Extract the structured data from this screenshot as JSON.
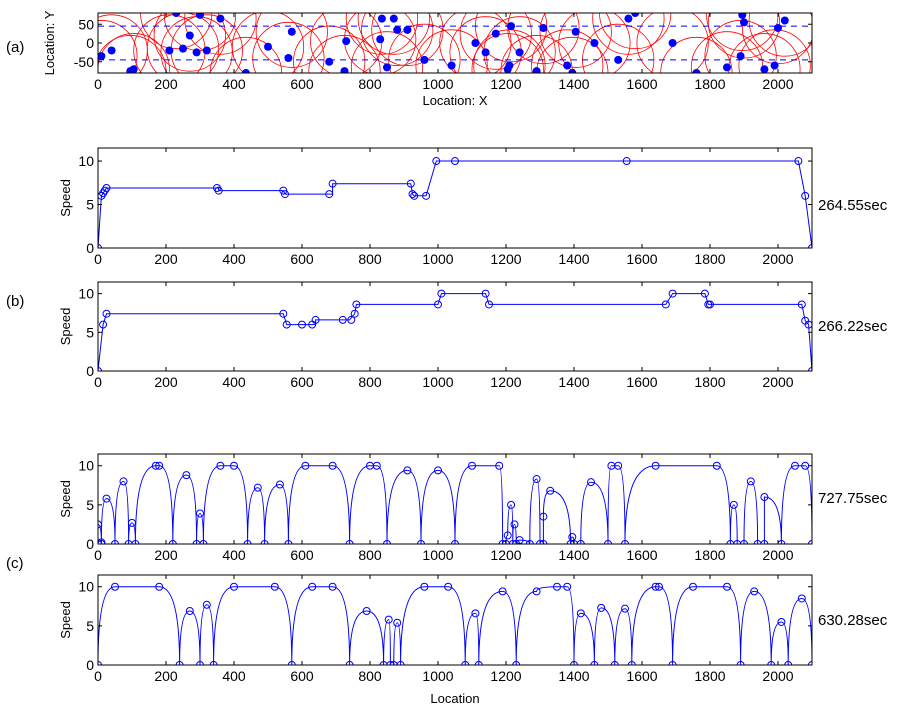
{
  "panel_labels": [
    "(a)",
    "(b)",
    "(c)"
  ],
  "colors": {
    "axes": "#000000",
    "line": "#0000ff",
    "circles": "#ff0000",
    "dots": "#0000ff"
  },
  "chart_data": [
    {
      "type": "scatter",
      "panel": "(a)",
      "xlabel": "Location: X",
      "ylabel": "Location: Y",
      "xlim": [
        0,
        2100
      ],
      "ylim": [
        -80,
        80
      ],
      "xticks": [
        0,
        200,
        400,
        600,
        800,
        1000,
        1200,
        1400,
        1600,
        1800,
        2000
      ],
      "yticks": [
        -50,
        0,
        50
      ],
      "dashed_lines_y": [
        -45,
        45
      ],
      "points": [
        [
          10,
          -35
        ],
        [
          40,
          -20
        ],
        [
          95,
          -75
        ],
        [
          105,
          -70
        ],
        [
          210,
          -20
        ],
        [
          230,
          80
        ],
        [
          250,
          -15
        ],
        [
          270,
          20
        ],
        [
          290,
          -25
        ],
        [
          300,
          75
        ],
        [
          320,
          -20
        ],
        [
          360,
          65
        ],
        [
          435,
          -80
        ],
        [
          500,
          -10
        ],
        [
          560,
          -40
        ],
        [
          570,
          30
        ],
        [
          680,
          -50
        ],
        [
          725,
          -75
        ],
        [
          730,
          5
        ],
        [
          830,
          10
        ],
        [
          835,
          65
        ],
        [
          850,
          -65
        ],
        [
          870,
          65
        ],
        [
          880,
          35
        ],
        [
          910,
          35
        ],
        [
          960,
          -45
        ],
        [
          1040,
          -60
        ],
        [
          1110,
          0
        ],
        [
          1140,
          -25
        ],
        [
          1170,
          25
        ],
        [
          1205,
          -70
        ],
        [
          1210,
          -60
        ],
        [
          1215,
          45
        ],
        [
          1240,
          -25
        ],
        [
          1290,
          -75
        ],
        [
          1310,
          40
        ],
        [
          1380,
          -60
        ],
        [
          1395,
          -80
        ],
        [
          1405,
          30
        ],
        [
          1460,
          0
        ],
        [
          1530,
          -45
        ],
        [
          1560,
          65
        ],
        [
          1580,
          80
        ],
        [
          1690,
          0
        ],
        [
          1760,
          -80
        ],
        [
          1850,
          -65
        ],
        [
          1890,
          -35
        ],
        [
          1895,
          75
        ],
        [
          1900,
          55
        ],
        [
          1960,
          -70
        ],
        [
          1990,
          -60
        ],
        [
          2000,
          40
        ],
        [
          2020,
          60
        ]
      ],
      "circle_radius": 105
    },
    {
      "type": "line",
      "panel": "(b)",
      "ylabel": "Speed",
      "xlim": [
        0,
        2100
      ],
      "ylim": [
        0,
        11.5
      ],
      "xticks": [
        0,
        200,
        400,
        600,
        800,
        1000,
        1200,
        1400,
        1600,
        1800,
        2000
      ],
      "yticks": [
        0,
        5,
        10
      ],
      "time_label": "264.55sec",
      "profile": [
        [
          0,
          0
        ],
        [
          10,
          6
        ],
        [
          20,
          6.6
        ],
        [
          25,
          6.9
        ],
        [
          355,
          6.9
        ],
        [
          355,
          6.6
        ],
        [
          545,
          6.6
        ],
        [
          550,
          6.2
        ],
        [
          690,
          6.2
        ],
        [
          690,
          7.4
        ],
        [
          920,
          7.4
        ],
        [
          925,
          6.2
        ],
        [
          930,
          6.0
        ],
        [
          965,
          6.0
        ],
        [
          995,
          10
        ],
        [
          1050,
          10
        ],
        [
          1555,
          10
        ],
        [
          2060,
          10
        ],
        [
          2080,
          6
        ],
        [
          2100,
          0
        ]
      ],
      "markers": [
        [
          0,
          0
        ],
        [
          10,
          6
        ],
        [
          15,
          6.3
        ],
        [
          20,
          6.6
        ],
        [
          25,
          6.9
        ],
        [
          350,
          6.9
        ],
        [
          355,
          6.6
        ],
        [
          545,
          6.6
        ],
        [
          550,
          6.2
        ],
        [
          680,
          6.2
        ],
        [
          690,
          7.4
        ],
        [
          920,
          7.4
        ],
        [
          925,
          6.2
        ],
        [
          930,
          6.0
        ],
        [
          965,
          6.0
        ],
        [
          995,
          10
        ],
        [
          1050,
          10
        ],
        [
          1555,
          10
        ],
        [
          2060,
          10
        ],
        [
          2080,
          6
        ],
        [
          2100,
          0
        ]
      ]
    },
    {
      "type": "line",
      "panel": "(b)",
      "ylabel": "Speed",
      "xlim": [
        0,
        2100
      ],
      "ylim": [
        0,
        11.5
      ],
      "xticks": [
        0,
        200,
        400,
        600,
        800,
        1000,
        1200,
        1400,
        1600,
        1800,
        2000
      ],
      "yticks": [
        0,
        5,
        10
      ],
      "time_label": "266.22sec",
      "profile": [
        [
          0,
          0
        ],
        [
          15,
          6
        ],
        [
          25,
          7.4
        ],
        [
          545,
          7.4
        ],
        [
          555,
          6
        ],
        [
          640,
          6
        ],
        [
          640,
          6.6
        ],
        [
          700,
          6.6
        ],
        [
          740,
          6.6
        ],
        [
          755,
          7.4
        ],
        [
          760,
          8.6
        ],
        [
          1000,
          8.6
        ],
        [
          1010,
          10
        ],
        [
          1140,
          10
        ],
        [
          1150,
          8.6
        ],
        [
          1670,
          8.6
        ],
        [
          1690,
          10
        ],
        [
          1785,
          10
        ],
        [
          1795,
          8.6
        ],
        [
          2070,
          8.6
        ],
        [
          2080,
          6.5
        ],
        [
          2090,
          6
        ],
        [
          2100,
          0
        ]
      ],
      "markers": [
        [
          0,
          0
        ],
        [
          15,
          6
        ],
        [
          25,
          7.4
        ],
        [
          545,
          7.4
        ],
        [
          555,
          6
        ],
        [
          600,
          6
        ],
        [
          630,
          6
        ],
        [
          640,
          6.6
        ],
        [
          720,
          6.6
        ],
        [
          745,
          6.6
        ],
        [
          755,
          7.4
        ],
        [
          760,
          8.6
        ],
        [
          1000,
          8.6
        ],
        [
          1010,
          10
        ],
        [
          1140,
          10
        ],
        [
          1150,
          8.6
        ],
        [
          1670,
          8.6
        ],
        [
          1690,
          10
        ],
        [
          1785,
          10
        ],
        [
          1795,
          8.6
        ],
        [
          1800,
          8.6
        ],
        [
          2070,
          8.6
        ],
        [
          2080,
          6.5
        ],
        [
          2090,
          6
        ],
        [
          2100,
          0
        ]
      ]
    },
    {
      "type": "line",
      "panel": "(c)",
      "ylabel": "Speed",
      "xlim": [
        0,
        2100
      ],
      "ylim": [
        0,
        11.5
      ],
      "xticks": [
        0,
        200,
        400,
        600,
        800,
        1000,
        1200,
        1400,
        1600,
        1800,
        2000
      ],
      "yticks": [
        0,
        5,
        10
      ],
      "time_label": "727.75sec",
      "zeros": [
        0,
        10,
        50,
        90,
        110,
        220,
        290,
        310,
        440,
        490,
        560,
        740,
        850,
        950,
        1050,
        1190,
        1200,
        1220,
        1230,
        1270,
        1300,
        1310,
        1390,
        1400,
        1420,
        1500,
        1550,
        1860,
        1880,
        1900,
        1940,
        1960,
        2010,
        2100
      ],
      "peaks": [
        [
          0,
          2.5
        ],
        [
          10,
          0.2
        ],
        [
          25,
          5.8
        ],
        [
          75,
          8.0
        ],
        [
          100,
          2.7
        ],
        [
          170,
          10
        ],
        [
          180,
          10
        ],
        [
          260,
          8.8
        ],
        [
          300,
          3.9
        ],
        [
          360,
          10
        ],
        [
          400,
          10
        ],
        [
          470,
          7.2
        ],
        [
          535,
          7.6
        ],
        [
          610,
          10
        ],
        [
          690,
          10
        ],
        [
          800,
          10
        ],
        [
          820,
          10
        ],
        [
          910,
          9.4
        ],
        [
          1000,
          9.4
        ],
        [
          1100,
          10
        ],
        [
          1180,
          10
        ],
        [
          1205,
          1.1
        ],
        [
          1215,
          5.0
        ],
        [
          1225,
          2.5
        ],
        [
          1240,
          0.5
        ],
        [
          1290,
          8.3
        ],
        [
          1310,
          3.5
        ],
        [
          1330,
          6.8
        ],
        [
          1395,
          0.9
        ],
        [
          1450,
          7.9
        ],
        [
          1510,
          10
        ],
        [
          1530,
          10
        ],
        [
          1640,
          10
        ],
        [
          1820,
          10
        ],
        [
          1870,
          5.0
        ],
        [
          1920,
          8.0
        ],
        [
          1960,
          6.0
        ],
        [
          2050,
          10
        ],
        [
          2080,
          10
        ]
      ]
    },
    {
      "type": "line",
      "panel": "(c)",
      "ylabel": "Speed",
      "xlabel": "Location",
      "xlim": [
        0,
        2100
      ],
      "ylim": [
        0,
        11.5
      ],
      "xticks": [
        0,
        200,
        400,
        600,
        800,
        1000,
        1200,
        1400,
        1600,
        1800,
        2000
      ],
      "yticks": [
        0,
        5,
        10
      ],
      "time_label": "630.28sec",
      "zeros": [
        0,
        240,
        300,
        340,
        570,
        740,
        840,
        860,
        870,
        890,
        1080,
        1120,
        1230,
        1400,
        1460,
        1520,
        1570,
        1690,
        1890,
        1980,
        2030,
        2100
      ],
      "peaks": [
        [
          50,
          10
        ],
        [
          180,
          10
        ],
        [
          270,
          6.9
        ],
        [
          320,
          7.7
        ],
        [
          400,
          10
        ],
        [
          520,
          10
        ],
        [
          630,
          10
        ],
        [
          690,
          10
        ],
        [
          790,
          6.9
        ],
        [
          855,
          5.8
        ],
        [
          880,
          5.4
        ],
        [
          960,
          10
        ],
        [
          1030,
          10
        ],
        [
          1110,
          6.6
        ],
        [
          1190,
          9.4
        ],
        [
          1290,
          9.4
        ],
        [
          1350,
          10
        ],
        [
          1380,
          10
        ],
        [
          1420,
          6.6
        ],
        [
          1480,
          7.3
        ],
        [
          1550,
          7.2
        ],
        [
          1640,
          10
        ],
        [
          1650,
          10
        ],
        [
          1750,
          10
        ],
        [
          1850,
          10
        ],
        [
          1930,
          9.4
        ],
        [
          2010,
          5.5
        ],
        [
          2070,
          8.5
        ]
      ]
    }
  ]
}
